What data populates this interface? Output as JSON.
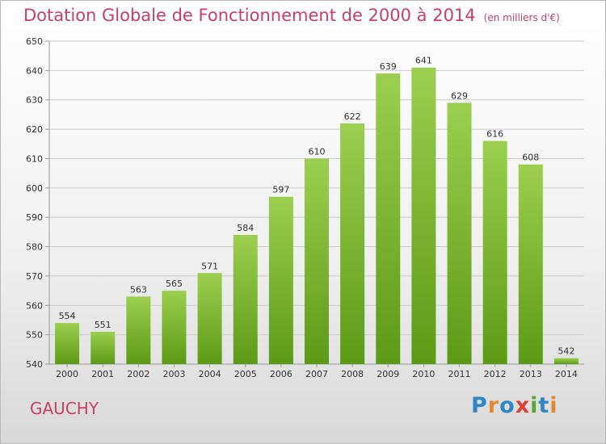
{
  "header": {
    "title": "Dotation Globale de Fonctionnement de 2000 à 2014",
    "subtitle": "(en milliers d'€)"
  },
  "footer": {
    "city": "GAUCHY",
    "logo_text": "Proxiti"
  },
  "colors": {
    "title": "#cc3d68",
    "bar_top": "#9ccf4f",
    "bar_bottom": "#5c9a16",
    "grid": "#cccccc",
    "logo": [
      "#2f86c7",
      "#e6882a",
      "#2f86c7",
      "#e23c3c",
      "#5ca730",
      "#2f86c7",
      "#e6882a"
    ]
  },
  "chart_data": {
    "type": "bar",
    "categories": [
      "2000",
      "2001",
      "2002",
      "2003",
      "2004",
      "2005",
      "2006",
      "2007",
      "2008",
      "2009",
      "2010",
      "2011",
      "2012",
      "2013",
      "2014"
    ],
    "values": [
      554,
      551,
      563,
      565,
      571,
      584,
      597,
      610,
      622,
      639,
      641,
      629,
      616,
      608,
      542
    ],
    "ylim": [
      540,
      650
    ],
    "yticks": [
      540,
      550,
      560,
      570,
      580,
      590,
      600,
      610,
      620,
      630,
      640,
      650
    ],
    "grid": true,
    "legend": "none"
  }
}
